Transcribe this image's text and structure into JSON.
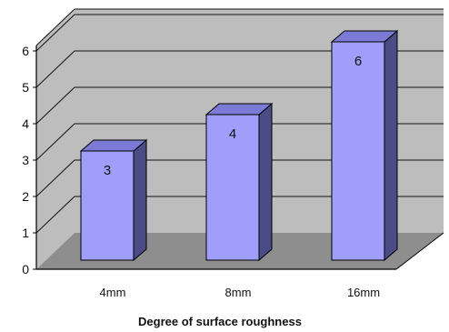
{
  "chart_data": {
    "type": "bar",
    "categories": [
      "4mm",
      "8mm",
      "16mm"
    ],
    "values": [
      3,
      4,
      6
    ],
    "data_labels": [
      "3",
      "4",
      "6"
    ],
    "title": "",
    "xlabel": "Degree of surface roughness",
    "ylabel": "",
    "ylim": [
      0,
      6
    ],
    "yticks": [
      "0",
      "1",
      "2",
      "3",
      "4",
      "5",
      "6"
    ],
    "grid": true,
    "legend": "none",
    "style": "3d-column"
  },
  "colors": {
    "bar_front": "#9f9ffb",
    "bar_side": "#4b4b86",
    "bar_top": "#7b7bd6",
    "wall": "#bdbdbd",
    "floor": "#8e8e8e",
    "grid": "#111111"
  }
}
